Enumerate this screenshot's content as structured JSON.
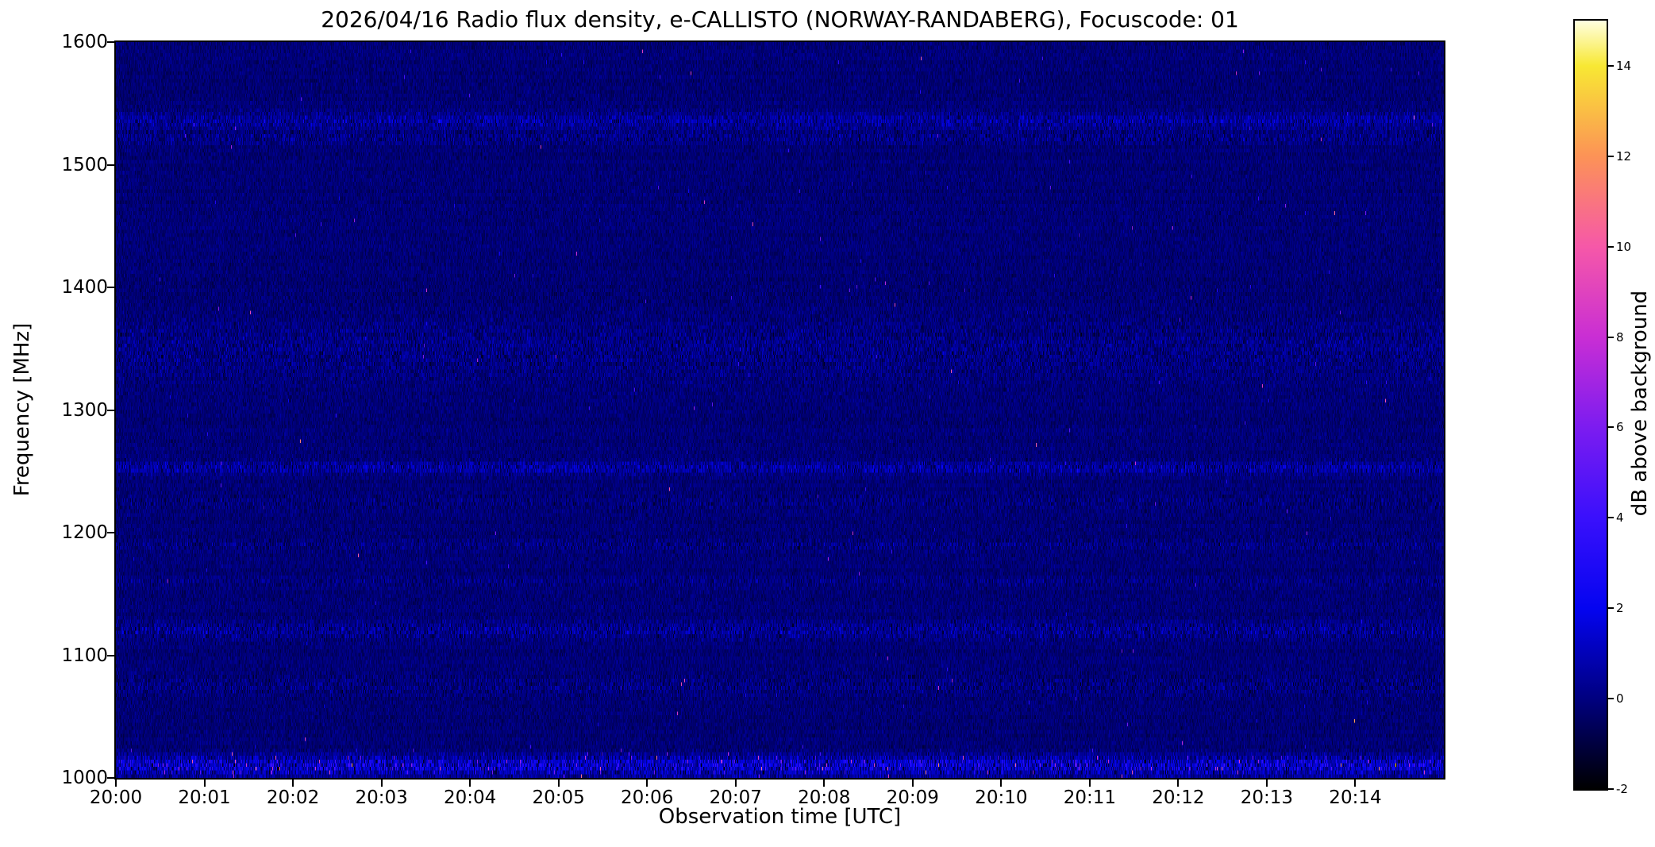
{
  "chart_data": {
    "type": "heatmap",
    "title": "2026/04/16  Radio flux density, e-CALLISTO (NORWAY-RANDABERG), Focuscode: 01",
    "xlabel": "Observation time [UTC]",
    "ylabel": "Frequency [MHz]",
    "x_ticks": [
      "20:00",
      "20:01",
      "20:02",
      "20:03",
      "20:04",
      "20:05",
      "20:06",
      "20:07",
      "20:08",
      "20:09",
      "20:10",
      "20:11",
      "20:12",
      "20:13",
      "20:14"
    ],
    "x_tick_minutes": [
      0,
      1,
      2,
      3,
      4,
      5,
      6,
      7,
      8,
      9,
      10,
      11,
      12,
      13,
      14
    ],
    "x_range_minutes": [
      0,
      15
    ],
    "y_ticks": [
      1000,
      1100,
      1200,
      1300,
      1400,
      1500,
      1600
    ],
    "y_range_mhz": [
      1000,
      1600
    ],
    "grid": false,
    "legend": "none",
    "colorbar": {
      "label": "dB above background",
      "ticks": [
        -2,
        0,
        2,
        4,
        6,
        8,
        10,
        12,
        14
      ],
      "range": [
        -2,
        15
      ],
      "position": "right",
      "colormap_stops": [
        {
          "t": 0.0,
          "color": "#000000"
        },
        {
          "t": 0.118,
          "color": "#000080"
        },
        {
          "t": 0.235,
          "color": "#0404f0"
        },
        {
          "t": 0.353,
          "color": "#3a10fc"
        },
        {
          "t": 0.471,
          "color": "#7c1cf0"
        },
        {
          "t": 0.588,
          "color": "#c92ed4"
        },
        {
          "t": 0.706,
          "color": "#f658a8"
        },
        {
          "t": 0.824,
          "color": "#fc9356"
        },
        {
          "t": 0.941,
          "color": "#f8e833"
        },
        {
          "t": 1.0,
          "color": "#ffffe0"
        }
      ]
    },
    "background": {
      "mean_db": -0.15,
      "sd_db": 0.32
    },
    "noise_bands": [
      {
        "freq_mhz": 1536,
        "width_mhz": 9,
        "mean_db": 0.55,
        "sd_db": 0.55,
        "spike_prob": 0.0,
        "streak": 0.35,
        "description": "persistent RFI band near 1535 MHz"
      },
      {
        "freq_mhz": 1522,
        "width_mhz": 7,
        "mean_db": 0.25,
        "sd_db": 0.45,
        "spike_prob": 0.0,
        "streak": 0.0,
        "description": "faint RFI band"
      },
      {
        "freq_mhz": 1350,
        "width_mhz": 36,
        "mean_db": 0.22,
        "sd_db": 0.38,
        "spike_prob": 0.0,
        "streak": 0.0,
        "description": "broad faint speckled region 1330-1370 MHz"
      },
      {
        "freq_mhz": 1253,
        "width_mhz": 7,
        "mean_db": 0.5,
        "sd_db": 0.6,
        "spike_prob": 0.0,
        "streak": 0.5,
        "description": "thin bright/dark mixed line"
      },
      {
        "freq_mhz": 1225,
        "width_mhz": 8,
        "mean_db": 0.12,
        "sd_db": 0.3,
        "spike_prob": 0.0,
        "streak": 0.0,
        "description": "very faint band"
      },
      {
        "freq_mhz": 1190,
        "width_mhz": 6,
        "mean_db": 0.18,
        "sd_db": 0.35,
        "spike_prob": 0.0,
        "streak": 0.0,
        "description": "faint band"
      },
      {
        "freq_mhz": 1160,
        "width_mhz": 5,
        "mean_db": 0.12,
        "sd_db": 0.3,
        "spike_prob": 0.0,
        "streak": 0.0,
        "description": "very faint band"
      },
      {
        "freq_mhz": 1120,
        "width_mhz": 10,
        "mean_db": 0.35,
        "sd_db": 0.55,
        "spike_prob": 0.0,
        "streak": 0.3,
        "description": "speckled band"
      },
      {
        "freq_mhz": 1075,
        "width_mhz": 12,
        "mean_db": 0.15,
        "sd_db": 0.35,
        "spike_prob": 0.0,
        "streak": 0.0,
        "description": "faint band"
      },
      {
        "freq_mhz": 1010,
        "width_mhz": 11,
        "mean_db": 1.0,
        "sd_db": 1.1,
        "spike_prob": 0.02,
        "streak": 1.0,
        "description": "strong broadband RFI with bright speckles near 1010 MHz"
      }
    ],
    "render_seed": 20260416
  }
}
